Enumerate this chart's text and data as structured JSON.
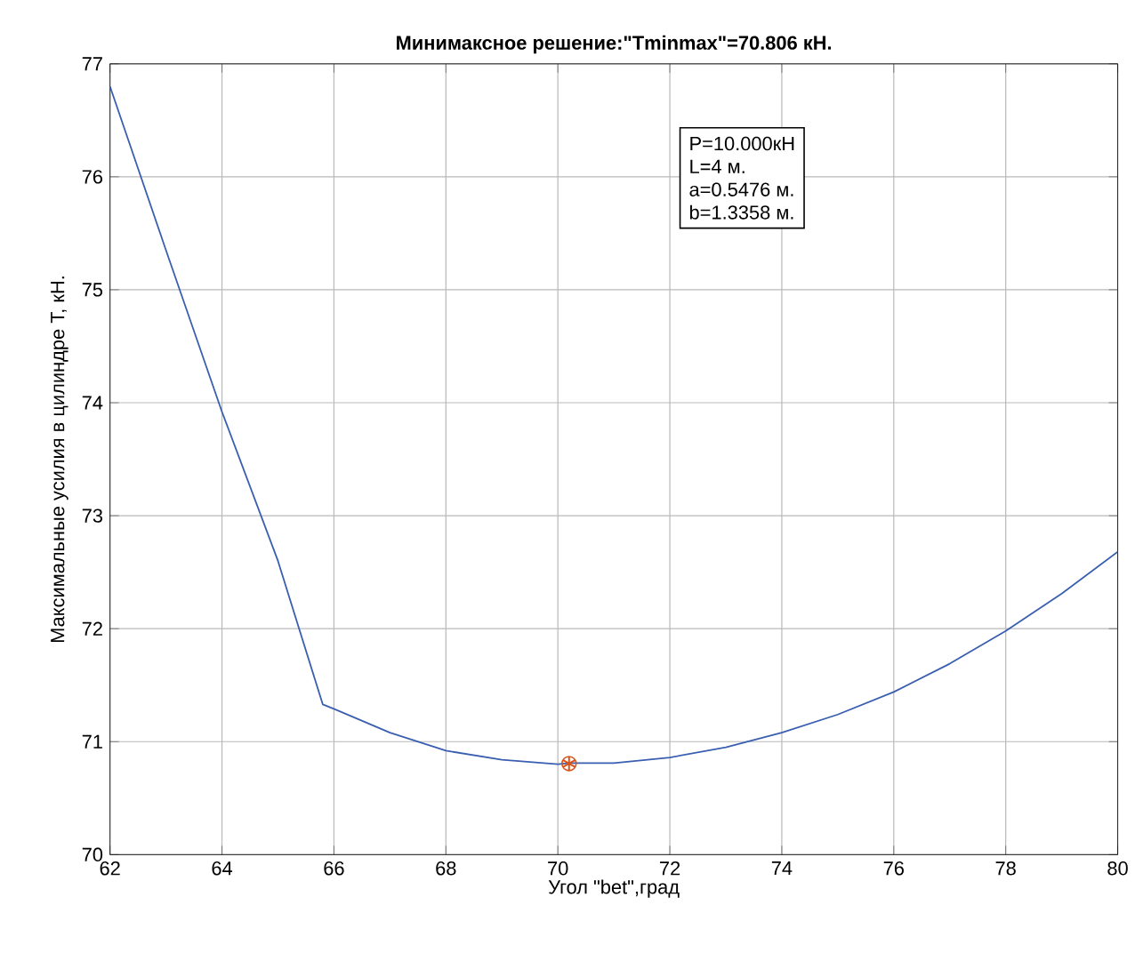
{
  "chart_data": {
    "type": "line",
    "title": "Минимаксное решение:\"Tminmax\"=70.806 кН.",
    "xlabel": "Угол \"bet\",град",
    "ylabel": "Максимальные усилия в цилиндре T, кН.",
    "annotations": [
      "P=10.000кН",
      "L=4 м.",
      "a=0.5476 м.",
      "b=1.3358 м."
    ],
    "series": [
      {
        "color": "#3a5fb0",
        "marker": "none",
        "x": [
          62,
          63,
          64,
          65,
          65.8,
          66,
          67,
          68,
          69,
          70,
          70.2,
          71,
          72,
          73,
          74,
          75,
          76,
          77,
          78,
          79,
          80
        ],
        "values": [
          76.8,
          75.35,
          73.92,
          72.6,
          71.33,
          71.29,
          71.08,
          70.92,
          70.84,
          70.8,
          70.81,
          70.81,
          70.86,
          70.95,
          71.08,
          71.24,
          71.44,
          71.69,
          71.98,
          72.31,
          72.68
        ]
      },
      {
        "type": "scatter",
        "color": "#d95319",
        "marker": "cross",
        "x": [
          70.2
        ],
        "values": [
          70.806
        ]
      }
    ],
    "xlim": [
      62,
      80
    ],
    "ylim": [
      70,
      77
    ],
    "xticks": [
      62,
      64,
      66,
      68,
      70,
      72,
      74,
      76,
      78,
      80
    ],
    "yticks": [
      70,
      71,
      72,
      73,
      74,
      75,
      76,
      77
    ],
    "grid": true
  }
}
